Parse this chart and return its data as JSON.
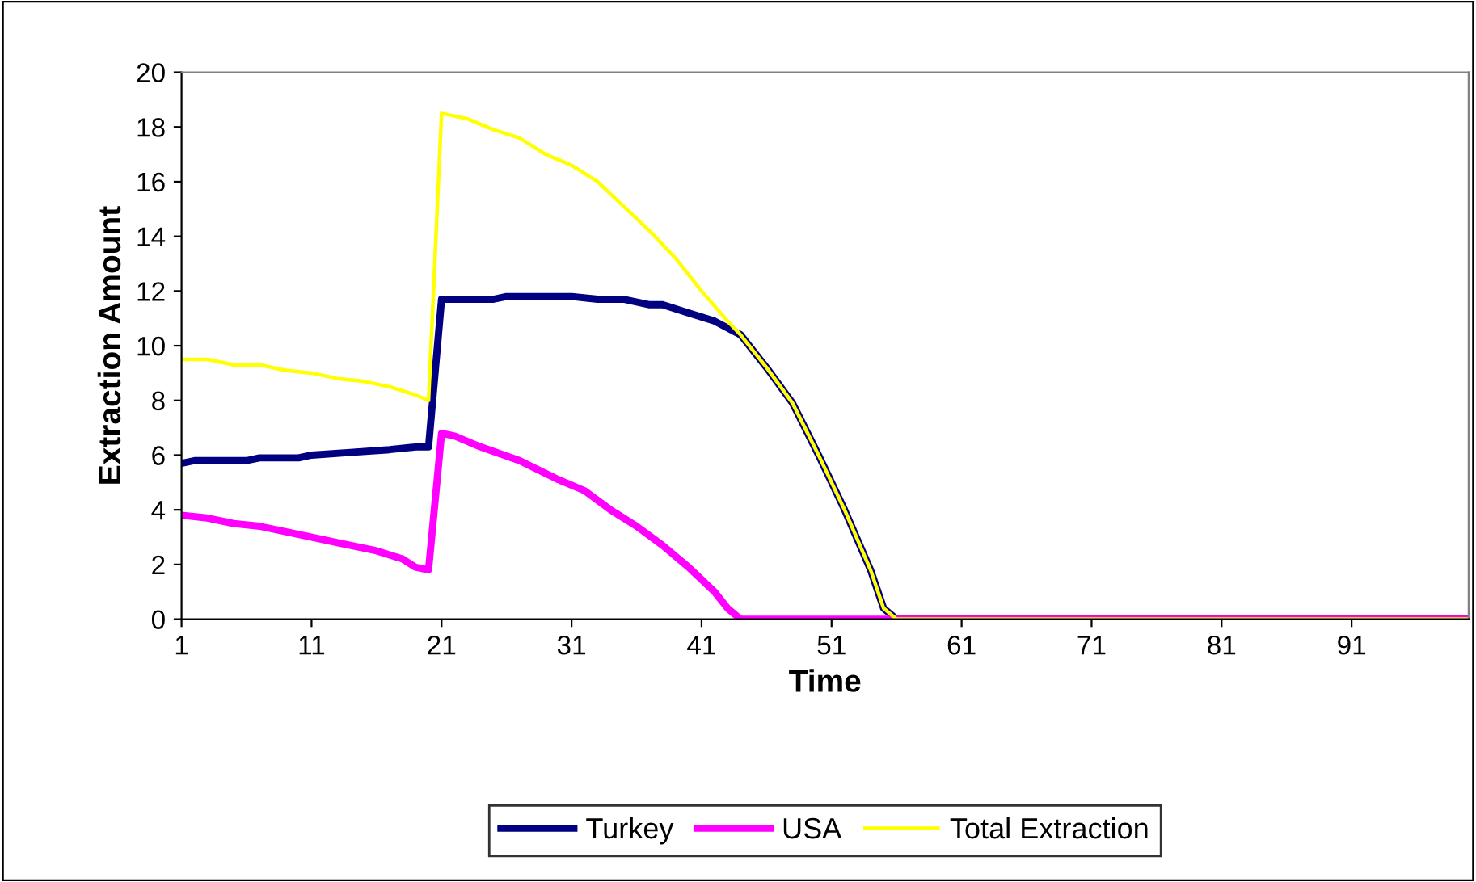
{
  "chart_data": {
    "type": "line",
    "xlabel": "Time",
    "ylabel": "Extraction Amount",
    "xlim": [
      1,
      100
    ],
    "xticks": [
      1,
      11,
      21,
      31,
      41,
      51,
      61,
      71,
      81,
      91
    ],
    "ylim": [
      0,
      20
    ],
    "yticks": [
      0,
      2,
      4,
      6,
      8,
      10,
      12,
      14,
      16,
      18,
      20
    ],
    "grid": false,
    "legend": "bottom",
    "marker": "none",
    "line_style": "solid",
    "series": [
      {
        "name": "Turkey",
        "color": "#000080",
        "x": [
          1,
          2,
          6,
          7,
          10,
          11,
          14,
          17,
          19,
          20,
          21,
          25,
          26,
          31,
          33,
          35,
          37,
          38,
          40,
          42,
          44,
          46,
          48,
          50,
          52,
          54,
          55,
          56,
          100
        ],
        "values": [
          5.7,
          5.8,
          5.8,
          5.9,
          5.9,
          6.0,
          6.1,
          6.2,
          6.3,
          6.3,
          11.7,
          11.7,
          11.8,
          11.8,
          11.7,
          11.7,
          11.5,
          11.5,
          11.2,
          10.9,
          10.4,
          9.2,
          7.9,
          6.0,
          4.0,
          1.8,
          0.4,
          0,
          0
        ]
      },
      {
        "name": "USA",
        "color": "#ff00ff",
        "x": [
          1,
          3,
          5,
          7,
          10,
          13,
          16,
          18,
          19,
          20,
          21,
          22,
          24,
          27,
          30,
          32,
          34,
          36,
          38,
          40,
          42,
          43,
          44,
          100
        ],
        "values": [
          3.8,
          3.7,
          3.5,
          3.4,
          3.1,
          2.8,
          2.5,
          2.2,
          1.9,
          1.8,
          6.8,
          6.7,
          6.3,
          5.8,
          5.1,
          4.7,
          4.0,
          3.4,
          2.7,
          1.9,
          1.0,
          0.4,
          0,
          0
        ]
      },
      {
        "name": "Total Extraction",
        "color": "#ffff00",
        "x": [
          1,
          3,
          5,
          7,
          9,
          11,
          13,
          15,
          17,
          19,
          20,
          21,
          23,
          25,
          27,
          29,
          31,
          33,
          35,
          37,
          39,
          41,
          43,
          44,
          46,
          48,
          50,
          52,
          54,
          55,
          56,
          100
        ],
        "values": [
          9.5,
          9.5,
          9.3,
          9.3,
          9.1,
          9.0,
          8.8,
          8.7,
          8.5,
          8.2,
          8.0,
          18.5,
          18.3,
          17.9,
          17.6,
          17.0,
          16.6,
          16.0,
          15.1,
          14.2,
          13.2,
          12.0,
          10.9,
          10.4,
          9.2,
          7.9,
          6.0,
          4.0,
          1.8,
          0.4,
          0,
          0
        ]
      }
    ]
  }
}
